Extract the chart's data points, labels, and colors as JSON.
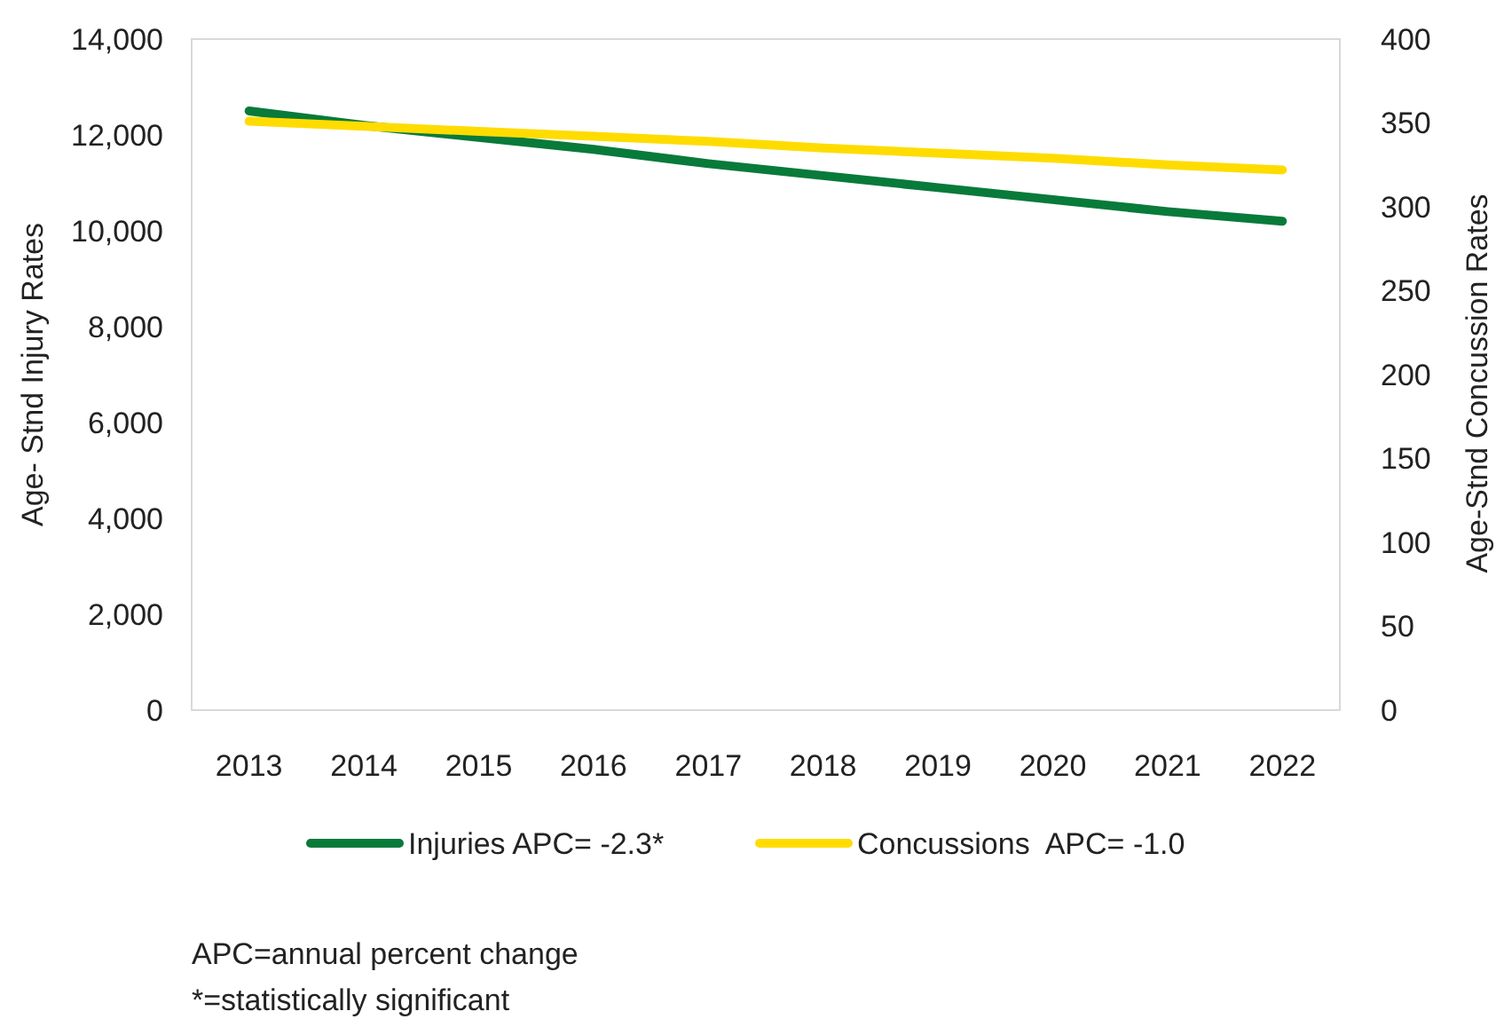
{
  "chart_data": {
    "type": "line",
    "categories": [
      "2013",
      "2014",
      "2015",
      "2016",
      "2017",
      "2018",
      "2019",
      "2020",
      "2021",
      "2022"
    ],
    "series": [
      {
        "name": "Injuries APC= -2.3*",
        "color": "#087a3a",
        "values": [
          12500,
          12200,
          11950,
          11700,
          11400,
          11150,
          10900,
          10650,
          10400,
          10200
        ]
      },
      {
        "name": "Concussions  APC= -1.0",
        "color": "#ffdc00",
        "axis": "y2",
        "values": [
          351,
          348,
          345,
          342,
          339,
          335,
          332,
          329,
          325,
          322
        ]
      }
    ],
    "ylabel": "Age- Stnd Injury Rates",
    "y2label": "Age-Stnd Concussion Rates",
    "ylim": [
      0,
      14000
    ],
    "yticks": [
      0,
      {
        "value": 2000,
        "label": "2,000"
      },
      {
        "value": 4000,
        "label": "4,000"
      },
      {
        "value": 6000,
        "label": "6,000"
      },
      {
        "value": 8000,
        "label": "8,000"
      },
      {
        "value": 10000,
        "label": "10,000"
      },
      {
        "value": 12000,
        "label": "12,000"
      },
      {
        "value": 14000,
        "label": "14,000"
      }
    ],
    "y2lim": [
      0,
      400
    ],
    "y2ticks": [
      0,
      50,
      100,
      150,
      200,
      250,
      300,
      350,
      400
    ],
    "legend": "bottom",
    "grid": false,
    "marker": "none",
    "line_style": "solid",
    "annotations": [
      "APC=annual percent change",
      "*=statistically significant"
    ]
  }
}
